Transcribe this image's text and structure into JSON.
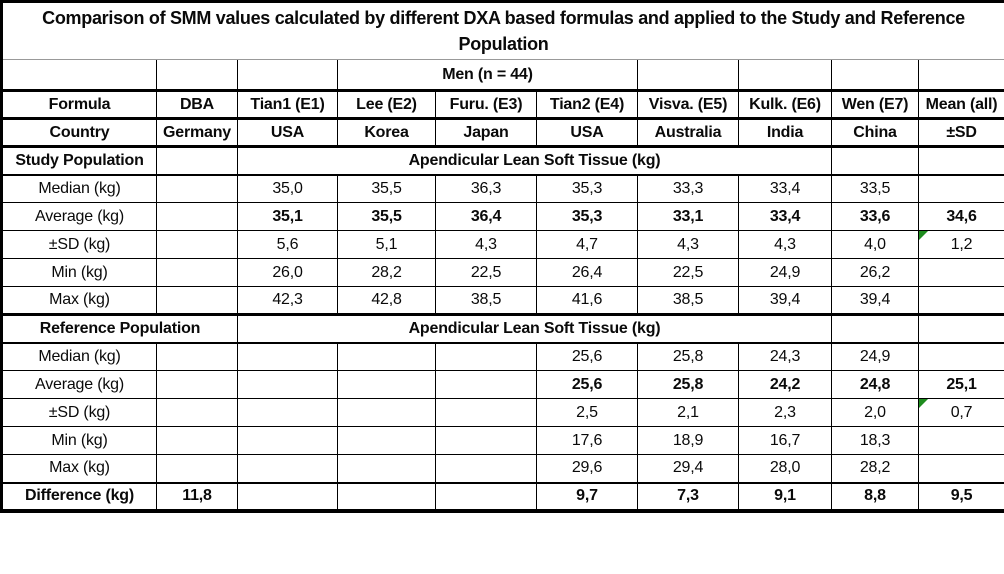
{
  "title": {
    "line1": "Comparison of SMM values calculated by different DXA based formulas and applied to the Study and Reference",
    "line2": "Population"
  },
  "subtitle": "Men (n = 44)",
  "header": {
    "formula_row": {
      "label": "Formula",
      "cells": [
        "DBA",
        "Tian1 (E1)",
        "Lee (E2)",
        "Furu. (E3)",
        "Tian2 (E4)",
        "Visva. (E5)",
        "Kulk. (E6)",
        "Wen (E7)",
        "Mean (all)"
      ]
    },
    "country_row": {
      "label": "Country",
      "cells": [
        "Germany",
        "USA",
        "Korea",
        "Japan",
        "USA",
        "Australia",
        "India",
        "China",
        "±SD"
      ]
    }
  },
  "sections": [
    {
      "id": "study",
      "label": "Study Population",
      "label_colspan": 1,
      "span_text": "Apendicular Lean Soft Tissue (kg)",
      "rows": [
        {
          "label": "Median (kg)",
          "bold_values": false,
          "flag_mean": false,
          "values": [
            "",
            "35,0",
            "35,5",
            "36,3",
            "35,3",
            "33,3",
            "33,4",
            "33,5",
            ""
          ]
        },
        {
          "label": "Average (kg)",
          "bold_values": true,
          "flag_mean": false,
          "values": [
            "",
            "35,1",
            "35,5",
            "36,4",
            "35,3",
            "33,1",
            "33,4",
            "33,6",
            "34,6"
          ]
        },
        {
          "label": "±SD (kg)",
          "bold_values": false,
          "flag_mean": true,
          "values": [
            "",
            "5,6",
            "5,1",
            "4,3",
            "4,7",
            "4,3",
            "4,3",
            "4,0",
            "1,2"
          ]
        },
        {
          "label": "Min (kg)",
          "bold_values": false,
          "flag_mean": false,
          "values": [
            "",
            "26,0",
            "28,2",
            "22,5",
            "26,4",
            "22,5",
            "24,9",
            "26,2",
            ""
          ]
        },
        {
          "label": "Max (kg)",
          "bold_values": false,
          "flag_mean": false,
          "values": [
            "",
            "42,3",
            "42,8",
            "38,5",
            "41,6",
            "38,5",
            "39,4",
            "39,4",
            ""
          ]
        }
      ]
    },
    {
      "id": "reference",
      "label": "Reference Population",
      "label_colspan": 2,
      "span_text": "Apendicular Lean Soft Tissue (kg)",
      "rows": [
        {
          "label": "Median (kg)",
          "bold_values": false,
          "flag_mean": false,
          "values": [
            "",
            "",
            "",
            "",
            "25,6",
            "25,8",
            "24,3",
            "24,9",
            ""
          ]
        },
        {
          "label": "Average (kg)",
          "bold_values": true,
          "flag_mean": false,
          "values": [
            "",
            "",
            "",
            "",
            "25,6",
            "25,8",
            "24,2",
            "24,8",
            "25,1"
          ]
        },
        {
          "label": "±SD (kg)",
          "bold_values": false,
          "flag_mean": true,
          "values": [
            "",
            "",
            "",
            "",
            "2,5",
            "2,1",
            "2,3",
            "2,0",
            "0,7"
          ]
        },
        {
          "label": "Min (kg)",
          "bold_values": false,
          "flag_mean": false,
          "values": [
            "",
            "",
            "",
            "",
            "17,6",
            "18,9",
            "16,7",
            "18,3",
            ""
          ]
        },
        {
          "label": "Max (kg)",
          "bold_values": false,
          "flag_mean": false,
          "values": [
            "",
            "",
            "",
            "",
            "29,6",
            "29,4",
            "28,0",
            "28,2",
            ""
          ]
        }
      ]
    }
  ],
  "difference_row": {
    "label": "Difference (kg)",
    "bold_values": true,
    "values": [
      "11,8",
      "",
      "",
      "",
      "9,7",
      "7,3",
      "9,1",
      "8,8",
      "9,5"
    ]
  },
  "colors": {
    "flag_green": "#1e8c1e",
    "border": "#000000",
    "title_divider": "#999999"
  }
}
